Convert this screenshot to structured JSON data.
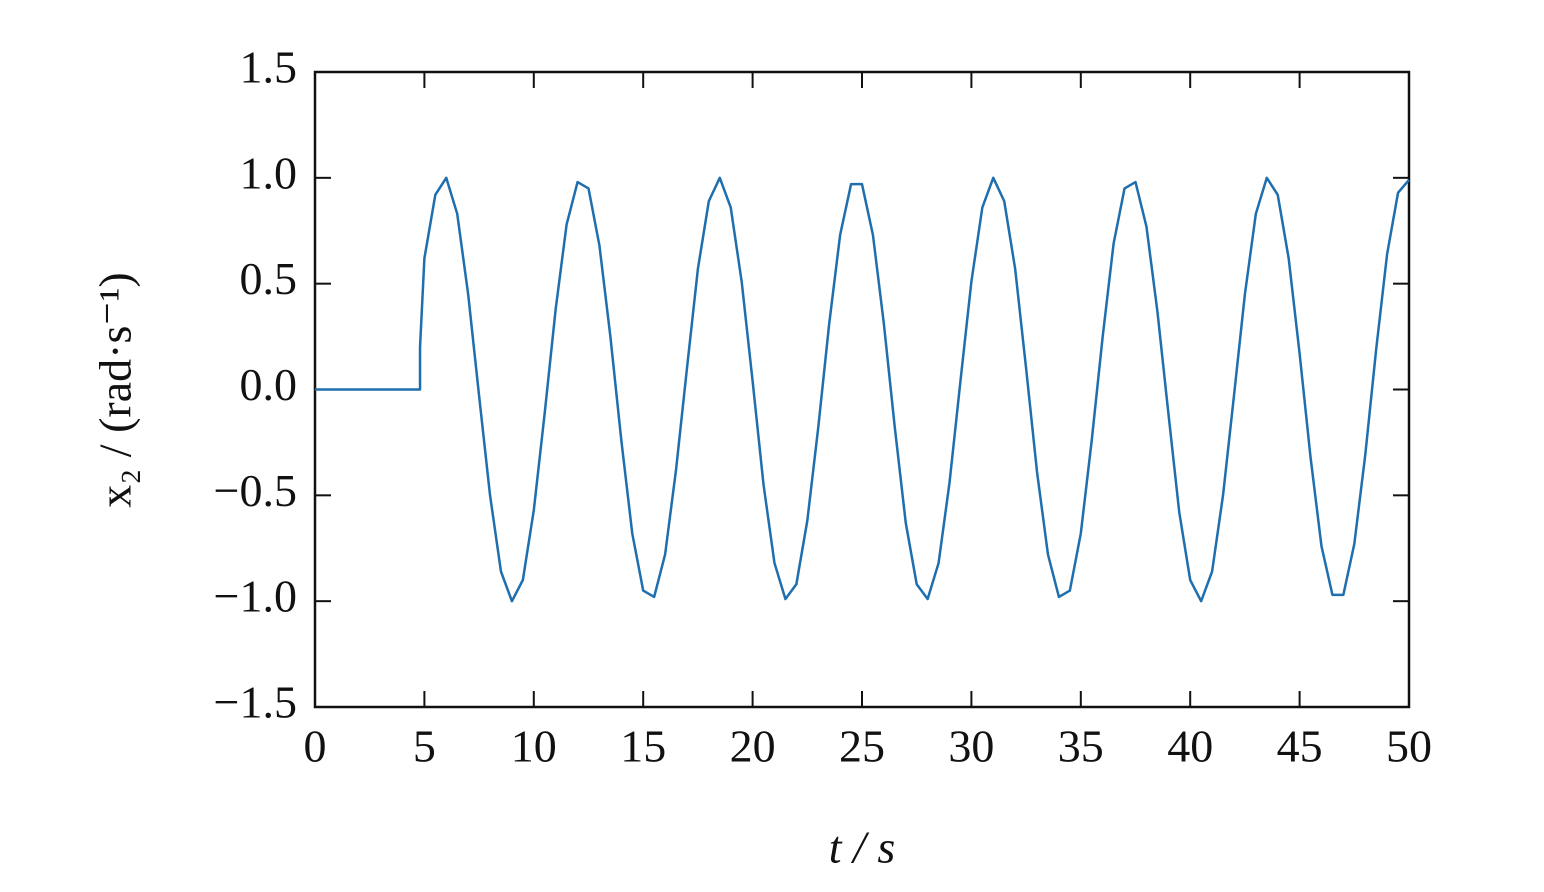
{
  "chart_data": {
    "type": "line",
    "xlabel": "t / s",
    "ylabel": "x₂ / (rad·s⁻¹)",
    "xlim": [
      0,
      50
    ],
    "ylim": [
      -1.5,
      1.5
    ],
    "xticks": [
      0,
      5,
      10,
      15,
      20,
      25,
      30,
      35,
      40,
      45,
      50
    ],
    "yticks": [
      {
        "value": -1.5,
        "label": "−1.5"
      },
      {
        "value": -1.0,
        "label": "−1.0"
      },
      {
        "value": -0.5,
        "label": "−0.5"
      },
      {
        "value": 0,
        "label": "0.0"
      },
      0.5,
      {
        "value": 1.0,
        "label": "1.0"
      },
      1.5
    ],
    "series": [
      {
        "color": "#1f6ead",
        "x": [
          0,
          4.8,
          4.8,
          5,
          5.5,
          6,
          6.5,
          7,
          7.5,
          8,
          8.5,
          9,
          9.5,
          10,
          10.5,
          11,
          11.5,
          12,
          12.5,
          13,
          13.5,
          14,
          14.5,
          15,
          15.5,
          16,
          16.5,
          17,
          17.5,
          18,
          18.5,
          19,
          19.5,
          20,
          20.5,
          21,
          21.5,
          22,
          22.5,
          23,
          23.5,
          24,
          24.5,
          25,
          25.5,
          26,
          26.5,
          27,
          27.5,
          28,
          28.5,
          29,
          29.5,
          30,
          30.5,
          31,
          31.5,
          32,
          32.5,
          33,
          33.5,
          34,
          34.5,
          35,
          35.5,
          36,
          36.5,
          37,
          37.5,
          38,
          38.5,
          39,
          39.5,
          40,
          40.5,
          41,
          41.5,
          42,
          42.5,
          43,
          43.5,
          44,
          44.5,
          45,
          45.5,
          46,
          46.5,
          47,
          47.5,
          48,
          48.5,
          49,
          49.5,
          50
        ],
        "values": [
          0,
          0,
          0.2,
          0.62,
          0.92,
          1.0,
          0.83,
          0.45,
          -0.03,
          -0.5,
          -0.86,
          -1.0,
          -0.9,
          -0.57,
          -0.11,
          0.38,
          0.78,
          0.98,
          0.95,
          0.68,
          0.25,
          -0.24,
          -0.68,
          -0.95,
          -0.98,
          -0.78,
          -0.38,
          0.1,
          0.57,
          0.89,
          1.0,
          0.86,
          0.51,
          0.04,
          -0.45,
          -0.82,
          -0.99,
          -0.92,
          -0.62,
          -0.18,
          0.31,
          0.73,
          0.97,
          0.97,
          0.73,
          0.31,
          -0.18,
          -0.63,
          -0.92,
          -0.99,
          -0.82,
          -0.44,
          0.04,
          0.51,
          0.86,
          1.0,
          0.89,
          0.57,
          0.1,
          -0.39,
          -0.78,
          -0.98,
          -0.95,
          -0.68,
          -0.24,
          0.25,
          0.69,
          0.95,
          0.98,
          0.77,
          0.37,
          -0.11,
          -0.58,
          -0.9,
          -1.0,
          -0.86,
          -0.5,
          -0.03,
          0.45,
          0.83,
          1.0,
          0.92,
          0.62,
          0.17,
          -0.32,
          -0.74,
          -0.97,
          -0.97,
          -0.73,
          -0.31,
          0.19,
          0.64,
          0.93,
          0.99
        ]
      }
    ]
  }
}
